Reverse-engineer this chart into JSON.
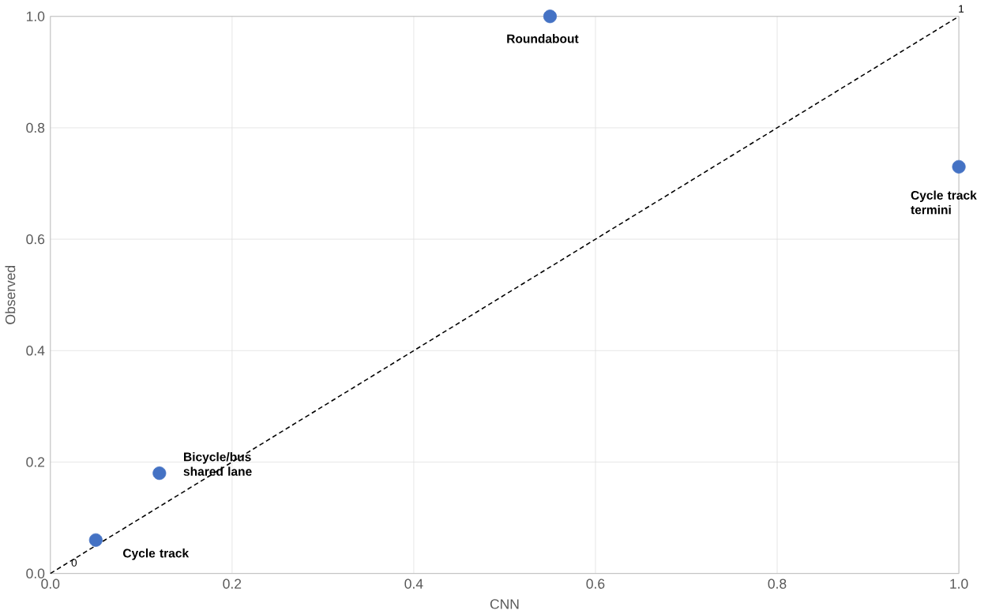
{
  "chart_data": {
    "type": "scatter",
    "xlabel": "CNN",
    "ylabel": "Observed",
    "xlim": [
      0,
      1
    ],
    "ylim": [
      0,
      1
    ],
    "xticks": [
      {
        "value": 0,
        "label": "0.0"
      },
      {
        "value": 0.2,
        "label": "0.2"
      },
      {
        "value": 0.4,
        "label": "0.4"
      },
      {
        "value": 0.6,
        "label": "0.6"
      },
      {
        "value": 0.8,
        "label": "0.8"
      },
      {
        "value": 1,
        "label": "1.0"
      }
    ],
    "yticks": [
      {
        "value": 0,
        "label": "0.0"
      },
      {
        "value": 0.2,
        "label": "0.2"
      },
      {
        "value": 0.4,
        "label": "0.4"
      },
      {
        "value": 0.6,
        "label": "0.6"
      },
      {
        "value": 0.8,
        "label": "0.8"
      },
      {
        "value": 1,
        "label": "1.0"
      }
    ],
    "grid": true,
    "series": [
      {
        "color": "#4472c4",
        "marker": "circle",
        "x": [
          0.05,
          0.12,
          0.55,
          1.0
        ],
        "values": [
          0.06,
          0.18,
          1.0,
          0.73
        ]
      },
      {
        "type": "line",
        "color": "#000000",
        "line_style": "dashed",
        "marker": "none",
        "x": [
          0,
          1
        ],
        "values": [
          0,
          1
        ]
      }
    ],
    "annotations": [
      {
        "text": "Cycle track",
        "x": 0.05,
        "y": 0.06
      },
      {
        "text": "Bicycle/bus shared lane",
        "x": 0.12,
        "y": 0.18
      },
      {
        "text": "Roundabout",
        "x": 0.55,
        "y": 1.0
      },
      {
        "text": "Cycle track termini",
        "x": 1.0,
        "y": 0.73
      },
      {
        "text": "0",
        "x": 0,
        "y": 0
      },
      {
        "text": "1",
        "x": 1,
        "y": 1
      }
    ]
  }
}
